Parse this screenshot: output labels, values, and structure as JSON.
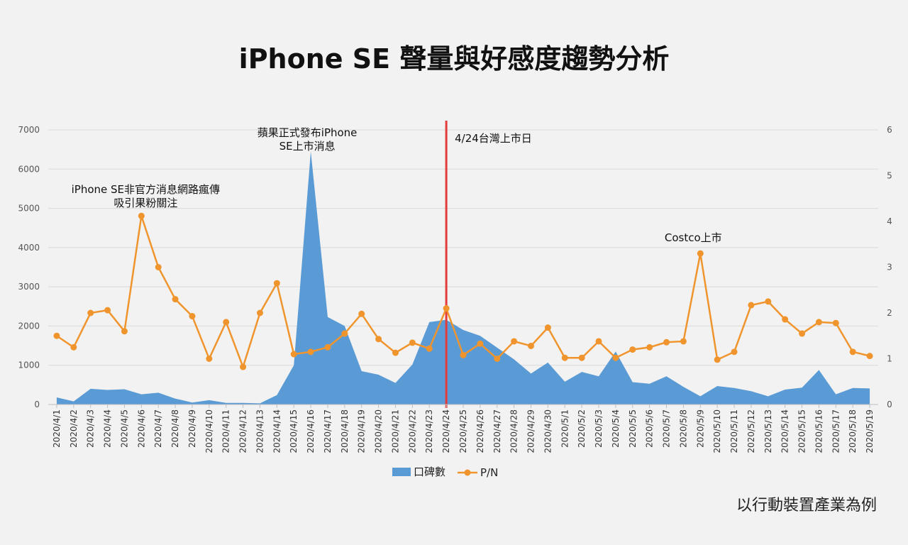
{
  "title": "iPhone SE 聲量與好感度趨勢分析",
  "footnote": "以行動裝置產業為例",
  "colors": {
    "area": "#5b9bd5",
    "line": "#f0952d",
    "marker_line": "#e53a3a",
    "grid": "#d9d9d9",
    "background": "#f2f2f2"
  },
  "chart_data": {
    "type": "area",
    "categories": [
      "2020/4/1",
      "2020/4/2",
      "2020/4/3",
      "2020/4/4",
      "2020/4/5",
      "2020/4/6",
      "2020/4/7",
      "2020/4/8",
      "2020/4/9",
      "2020/4/10",
      "2020/4/11",
      "2020/4/12",
      "2020/4/13",
      "2020/4/14",
      "2020/4/15",
      "2020/4/16",
      "2020/4/17",
      "2020/4/18",
      "2020/4/19",
      "2020/4/20",
      "2020/4/21",
      "2020/4/22",
      "2020/4/23",
      "2020/4/24",
      "2020/4/25",
      "2020/4/26",
      "2020/4/27",
      "2020/4/28",
      "2020/4/29",
      "2020/4/30",
      "2020/5/1",
      "2020/5/2",
      "2020/5/3",
      "2020/5/4",
      "2020/5/5",
      "2020/5/6",
      "2020/5/7",
      "2020/5/8",
      "2020/5/9",
      "2020/5/10",
      "2020/5/11",
      "2020/5/12",
      "2020/5/13",
      "2020/5/14",
      "2020/5/15",
      "2020/5/16",
      "2020/5/17",
      "2020/5/18",
      "2020/5/19"
    ],
    "series": [
      {
        "name": "口碑數",
        "type": "area",
        "axis": "left",
        "values": [
          180,
          80,
          400,
          370,
          390,
          260,
          300,
          150,
          50,
          110,
          40,
          40,
          30,
          240,
          1000,
          6450,
          2230,
          2000,
          850,
          760,
          550,
          1020,
          2100,
          2160,
          1900,
          1750,
          1450,
          1150,
          790,
          1070,
          580,
          830,
          720,
          1350,
          570,
          530,
          720,
          450,
          210,
          470,
          420,
          340,
          210,
          380,
          430,
          880,
          260,
          420,
          410
        ]
      },
      {
        "name": "P/N",
        "type": "line",
        "axis": "right",
        "values": [
          1.5,
          1.25,
          2.0,
          2.06,
          1.6,
          4.12,
          3.0,
          2.3,
          1.93,
          1.0,
          1.8,
          0.82,
          2.0,
          2.65,
          1.1,
          1.15,
          1.25,
          1.55,
          1.98,
          1.43,
          1.13,
          1.35,
          1.22,
          2.1,
          1.08,
          1.33,
          1.0,
          1.38,
          1.28,
          1.68,
          1.02,
          1.02,
          1.38,
          1.02,
          1.2,
          1.25,
          1.36,
          1.38,
          3.3,
          0.98,
          1.15,
          2.17,
          2.25,
          1.86,
          1.55,
          1.8,
          1.78,
          1.15,
          1.06
        ]
      }
    ],
    "y_left": {
      "range": [
        0,
        7000
      ],
      "ticks": [
        0,
        1000,
        2000,
        3000,
        4000,
        5000,
        6000,
        7000
      ]
    },
    "y_right": {
      "range": [
        0,
        6
      ],
      "ticks": [
        0,
        1,
        2,
        3,
        4,
        5,
        6
      ]
    },
    "grid": true,
    "legend": "bottom",
    "vertical_marker": {
      "category": "2020/4/24",
      "label": "4/24台灣上市日"
    },
    "annotations": [
      {
        "category": "2020/4/6",
        "lines": [
          "iPhone SE非官方消息網路瘋傳",
          "吸引果粉關注"
        ]
      },
      {
        "category": "2020/4/16",
        "lines": [
          "蘋果正式發布iPhone",
          "SE上市消息"
        ]
      },
      {
        "category": "2020/5/9",
        "lines": [
          "Costco上市"
        ]
      }
    ]
  }
}
